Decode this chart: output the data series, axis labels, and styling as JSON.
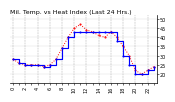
{
  "title": "Mil. Temp. vs Heat Index (Last 24 Hrs.)",
  "bg_color": "#ffffff",
  "grid_color": "#aaaaaa",
  "temp_color": "#ff0000",
  "heat_color": "#0000ff",
  "x_hours": [
    0,
    1,
    2,
    3,
    4,
    5,
    6,
    7,
    8,
    9,
    10,
    11,
    12,
    13,
    14,
    15,
    16,
    17,
    18,
    19,
    20,
    21,
    22,
    23
  ],
  "temp_values": [
    28,
    26,
    25,
    25,
    25,
    24,
    25,
    28,
    34,
    40,
    45,
    47,
    44,
    43,
    41,
    40,
    43,
    40,
    35,
    30,
    22,
    20,
    22,
    24
  ],
  "heat_values": [
    28,
    26,
    25,
    25,
    25,
    24,
    25,
    28,
    34,
    40,
    43,
    43,
    43,
    43,
    43,
    43,
    43,
    38,
    30,
    25,
    20,
    20,
    22,
    24
  ],
  "ylim": [
    15,
    52
  ],
  "yticks": [
    20,
    25,
    30,
    35,
    40,
    45,
    50
  ],
  "ytick_labels": [
    "20",
    "25",
    "30",
    "35",
    "40",
    "45",
    "50"
  ],
  "vgrid_every": 2,
  "title_fontsize": 4.5,
  "tick_fontsize": 3.5,
  "line_width": 0.7,
  "marker_size": 1.0
}
